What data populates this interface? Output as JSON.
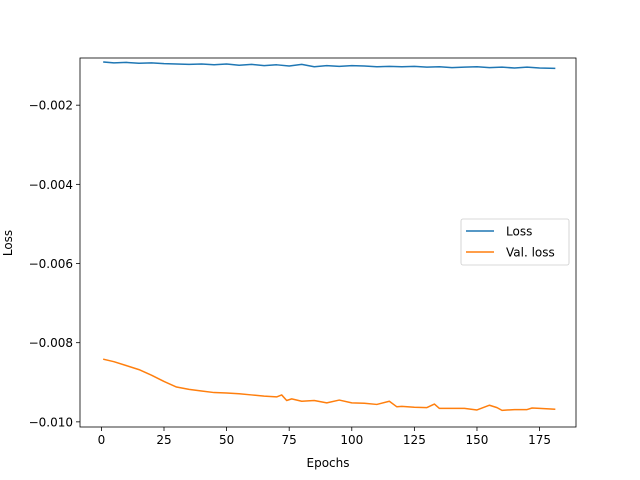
{
  "chart_data": {
    "type": "line",
    "title": "",
    "xlabel": "Epochs",
    "ylabel": "Loss",
    "xlim": [
      -8.55,
      189.55
    ],
    "ylim": [
      -0.01013,
      -0.000808
    ],
    "xticks": [
      0,
      25,
      50,
      75,
      100,
      125,
      150,
      175
    ],
    "xtick_labels": [
      "0",
      "25",
      "50",
      "75",
      "100",
      "125",
      "150",
      "175"
    ],
    "yticks": [
      -0.01,
      -0.008,
      -0.006,
      -0.004,
      -0.002
    ],
    "ytick_labels": [
      "−0.010",
      "−0.008",
      "−0.006",
      "−0.004",
      "−0.002"
    ],
    "grid": false,
    "legend_position": "center-right",
    "series": [
      {
        "name": "Loss",
        "color": "#1f77b4",
        "x": [
          1,
          5,
          10,
          15,
          20,
          25,
          30,
          35,
          40,
          45,
          50,
          55,
          60,
          65,
          70,
          75,
          80,
          85,
          90,
          95,
          100,
          105,
          110,
          115,
          120,
          125,
          130,
          135,
          140,
          145,
          150,
          155,
          160,
          165,
          170,
          175,
          181
        ],
        "y": [
          -0.00091,
          -0.00093,
          -0.00092,
          -0.00094,
          -0.00093,
          -0.00095,
          -0.00096,
          -0.00097,
          -0.00096,
          -0.00098,
          -0.00096,
          -0.00099,
          -0.00097,
          -0.001,
          -0.00098,
          -0.00101,
          -0.00097,
          -0.00103,
          -0.001,
          -0.00102,
          -0.001,
          -0.00101,
          -0.00103,
          -0.00102,
          -0.00103,
          -0.00102,
          -0.00104,
          -0.00103,
          -0.00105,
          -0.00104,
          -0.00103,
          -0.00105,
          -0.00104,
          -0.00106,
          -0.00104,
          -0.00106,
          -0.00107
        ]
      },
      {
        "name": "Val. loss",
        "color": "#ff7f0e",
        "x": [
          1,
          5,
          10,
          15,
          20,
          25,
          30,
          35,
          40,
          45,
          50,
          55,
          60,
          65,
          70,
          72,
          74,
          76,
          80,
          85,
          90,
          95,
          100,
          105,
          110,
          115,
          118,
          120,
          125,
          130,
          133,
          135,
          140,
          145,
          150,
          155,
          158,
          160,
          165,
          170,
          172,
          175,
          181
        ],
        "y": [
          -0.00842,
          -0.00848,
          -0.00858,
          -0.00868,
          -0.00882,
          -0.00898,
          -0.00912,
          -0.00918,
          -0.00922,
          -0.00926,
          -0.00927,
          -0.00929,
          -0.00932,
          -0.00935,
          -0.00937,
          -0.00932,
          -0.00946,
          -0.00942,
          -0.00948,
          -0.00946,
          -0.00952,
          -0.00945,
          -0.00952,
          -0.00953,
          -0.00956,
          -0.00948,
          -0.00962,
          -0.00961,
          -0.00963,
          -0.00964,
          -0.00955,
          -0.00966,
          -0.00966,
          -0.00966,
          -0.0097,
          -0.00958,
          -0.00964,
          -0.00971,
          -0.00969,
          -0.00969,
          -0.00965,
          -0.00966,
          -0.00968
        ]
      }
    ]
  }
}
